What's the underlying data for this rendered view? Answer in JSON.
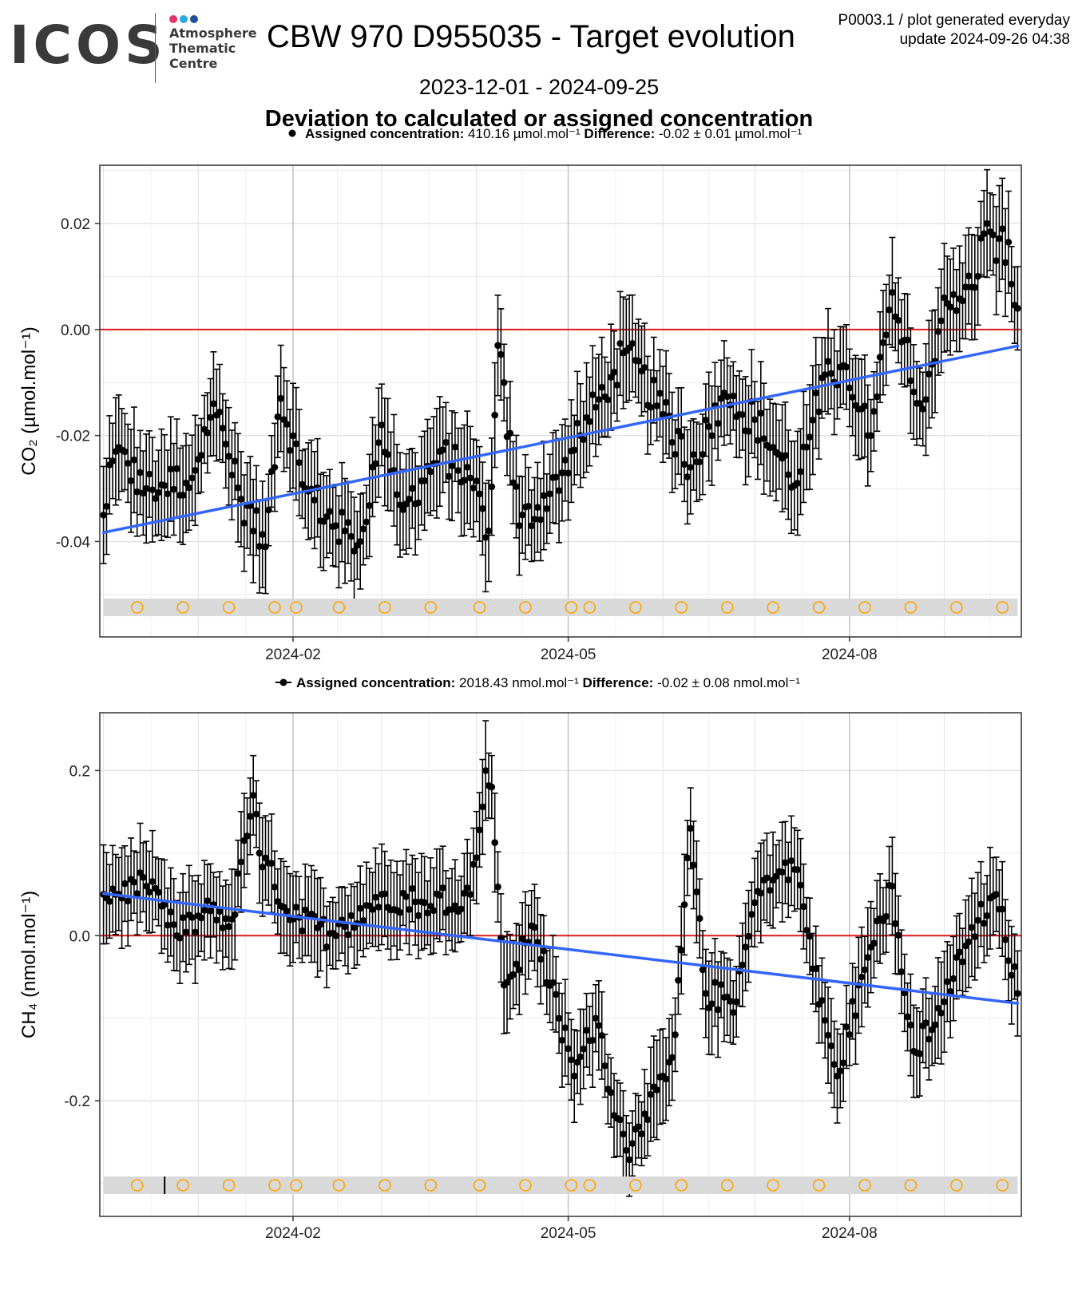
{
  "header": {
    "logo_text": "ICOS",
    "logo_sub_1": "Atmosphere",
    "logo_sub_2": "Thematic",
    "logo_sub_3": "Centre",
    "dot_colors": [
      "#e2336b",
      "#2aa8e0",
      "#1d4f9c"
    ],
    "title": "CBW 970 D955035 - Target evolution",
    "gen_line_1": "P0003.1 / plot generated everyday",
    "gen_line_2": "update  2024-09-26 04:38",
    "date_range": "2023-12-01 - 2024-09-25",
    "subtitle": "Deviation to calculated or assigned concentration"
  },
  "chart_data": [
    {
      "type": "scatter",
      "gas": "CO2",
      "ylabel": "CO₂ (µmol.mol⁻¹)",
      "legend": {
        "assigned_label": "Assigned concentration:",
        "assigned_value": "410.16 µmol.mol⁻¹",
        "difference_label": "Difference:",
        "difference_value": "-0.02 ± 0.01 µmol.mol⁻¹"
      },
      "x_range": [
        "2023-12-01",
        "2024-09-25"
      ],
      "ylim": [
        -0.058,
        0.031
      ],
      "y_ticks": [
        0.02,
        0.0,
        -0.02,
        -0.04
      ],
      "y_tick_labels": [
        "0.02",
        "0.00",
        "-0.02",
        "-0.04"
      ],
      "x_ticks": [
        "2024-02-01",
        "2024-05-01",
        "2024-08-01"
      ],
      "x_tick_labels": [
        "2024-02",
        "2024-05",
        "2024-08"
      ],
      "reference_line": 0.0,
      "trend": {
        "start": [
          "2023-12-01",
          -0.0383
        ],
        "end": [
          "2024-09-25",
          -0.0031
        ]
      },
      "error_bar_halfwidth": 0.0085,
      "key_points": [
        [
          "2023-12-01",
          -0.035
        ],
        [
          "2023-12-05",
          -0.023
        ],
        [
          "2023-12-15",
          -0.03
        ],
        [
          "2023-12-30",
          -0.028
        ],
        [
          "2024-01-06",
          -0.014
        ],
        [
          "2024-01-15",
          -0.032
        ],
        [
          "2024-01-23",
          -0.041
        ],
        [
          "2024-01-28",
          -0.013
        ],
        [
          "2024-02-05",
          -0.03
        ],
        [
          "2024-02-15",
          -0.037
        ],
        [
          "2024-02-23",
          -0.04
        ],
        [
          "2024-03-01",
          -0.018
        ],
        [
          "2024-03-08",
          -0.034
        ],
        [
          "2024-03-20",
          -0.023
        ],
        [
          "2024-03-30",
          -0.028
        ],
        [
          "2024-04-05",
          -0.038
        ],
        [
          "2024-04-08",
          -0.003
        ],
        [
          "2024-04-15",
          -0.037
        ],
        [
          "2024-04-25",
          -0.031
        ],
        [
          "2024-05-05",
          -0.02
        ],
        [
          "2024-05-15",
          -0.009
        ],
        [
          "2024-05-20",
          -0.004
        ],
        [
          "2024-06-01",
          -0.016
        ],
        [
          "2024-06-10",
          -0.026
        ],
        [
          "2024-06-20",
          -0.013
        ],
        [
          "2024-07-01",
          -0.017
        ],
        [
          "2024-07-15",
          -0.029
        ],
        [
          "2024-07-25",
          -0.006
        ],
        [
          "2024-08-01",
          -0.011
        ],
        [
          "2024-08-08",
          -0.02
        ],
        [
          "2024-08-15",
          0.007
        ],
        [
          "2024-08-25",
          -0.015
        ],
        [
          "2024-09-01",
          0.006
        ],
        [
          "2024-09-10",
          0.008
        ],
        [
          "2024-09-15",
          0.02
        ],
        [
          "2024-09-18",
          0.013
        ],
        [
          "2024-09-20",
          0.019
        ],
        [
          "2024-09-25",
          0.004
        ]
      ],
      "marker_dates": [
        "2023-12-12",
        "2023-12-27",
        "2024-01-11",
        "2024-01-26",
        "2024-02-02",
        "2024-02-16",
        "2024-03-02",
        "2024-03-17",
        "2024-04-02",
        "2024-04-17",
        "2024-05-02",
        "2024-05-08",
        "2024-05-23",
        "2024-06-07",
        "2024-06-22",
        "2024-07-07",
        "2024-07-22",
        "2024-08-06",
        "2024-08-21",
        "2024-09-05",
        "2024-09-20"
      ]
    },
    {
      "type": "scatter",
      "gas": "CH4",
      "ylabel": "CH₄ (nmol.mol⁻¹)",
      "legend": {
        "assigned_label": "Assigned concentration:",
        "assigned_value": "2018.43 nmol.mol⁻¹",
        "difference_label": "Difference:",
        "difference_value": "-0.02 ± 0.08 nmol.mol⁻¹"
      },
      "x_range": [
        "2023-12-01",
        "2024-09-25"
      ],
      "ylim": [
        -0.34,
        0.27
      ],
      "y_ticks": [
        0.2,
        0.0,
        -0.2
      ],
      "y_tick_labels": [
        "0.2",
        "0.0",
        "-0.2"
      ],
      "x_ticks": [
        "2024-02-01",
        "2024-05-01",
        "2024-08-01"
      ],
      "x_tick_labels": [
        "2024-02",
        "2024-05",
        "2024-08"
      ],
      "reference_line": 0.0,
      "trend": {
        "start": [
          "2023-12-01",
          0.051
        ],
        "end": [
          "2024-09-25",
          -0.082
        ]
      },
      "error_bar_halfwidth": 0.05,
      "key_points": [
        [
          "2023-12-01",
          0.05
        ],
        [
          "2023-12-15",
          0.06
        ],
        [
          "2023-12-25",
          0.0
        ],
        [
          "2024-01-05",
          0.03
        ],
        [
          "2024-01-12",
          0.02
        ],
        [
          "2024-01-19",
          0.17
        ],
        [
          "2024-01-21",
          0.1
        ],
        [
          "2024-02-01",
          0.02
        ],
        [
          "2024-02-15",
          0.0
        ],
        [
          "2024-03-01",
          0.05
        ],
        [
          "2024-03-15",
          0.04
        ],
        [
          "2024-03-30",
          0.05
        ],
        [
          "2024-04-04",
          0.2
        ],
        [
          "2024-04-06",
          0.18
        ],
        [
          "2024-04-10",
          -0.06
        ],
        [
          "2024-04-20",
          0.01
        ],
        [
          "2024-04-28",
          -0.1
        ],
        [
          "2024-05-03",
          -0.17
        ],
        [
          "2024-05-10",
          -0.1
        ],
        [
          "2024-05-15",
          -0.19
        ],
        [
          "2024-05-20",
          -0.26
        ],
        [
          "2024-05-25",
          -0.24
        ],
        [
          "2024-06-01",
          -0.17
        ],
        [
          "2024-06-05",
          -0.12
        ],
        [
          "2024-06-10",
          0.13
        ],
        [
          "2024-06-15",
          -0.07
        ],
        [
          "2024-06-25",
          -0.08
        ],
        [
          "2024-07-01",
          0.04
        ],
        [
          "2024-07-05",
          0.07
        ],
        [
          "2024-07-15",
          0.08
        ],
        [
          "2024-07-20",
          -0.04
        ],
        [
          "2024-07-28",
          -0.17
        ],
        [
          "2024-08-05",
          -0.05
        ],
        [
          "2024-08-15",
          0.06
        ],
        [
          "2024-08-22",
          -0.14
        ],
        [
          "2024-09-01",
          -0.08
        ],
        [
          "2024-09-10",
          0.01
        ],
        [
          "2024-09-18",
          0.05
        ],
        [
          "2024-09-25",
          -0.07
        ]
      ],
      "marker_dates": [
        "2023-12-12",
        "2023-12-27",
        "2024-01-11",
        "2024-01-26",
        "2024-02-02",
        "2024-02-16",
        "2024-03-02",
        "2024-03-17",
        "2024-04-02",
        "2024-04-17",
        "2024-05-02",
        "2024-05-08",
        "2024-05-23",
        "2024-06-07",
        "2024-06-22",
        "2024-07-07",
        "2024-07-22",
        "2024-08-06",
        "2024-08-21",
        "2024-09-05",
        "2024-09-20"
      ],
      "tick_mark_date": "2023-12-21"
    }
  ],
  "colors": {
    "points": "#000000",
    "trend": "#3366ff",
    "reference": "#e41a1c",
    "markers": "#ffa500",
    "band": "#d9d9d9"
  }
}
